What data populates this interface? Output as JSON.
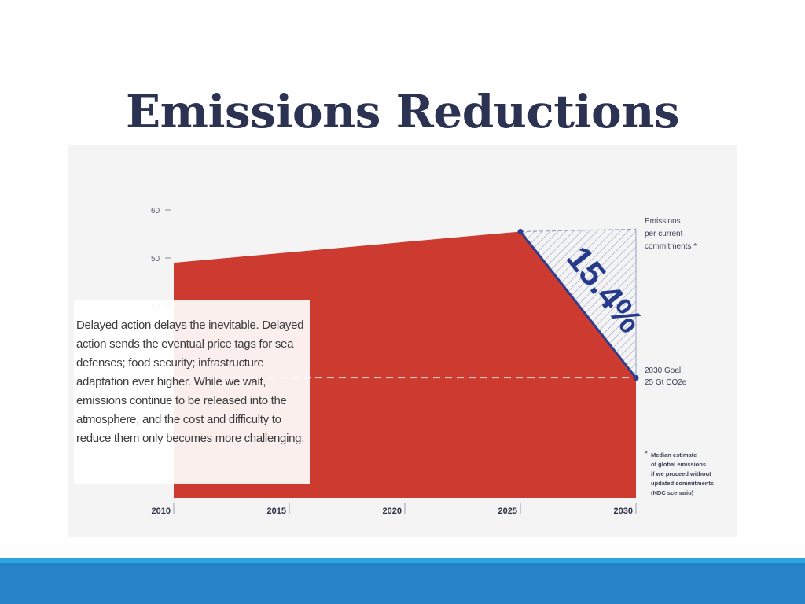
{
  "slide": {
    "title": "Emissions Reductions",
    "callout": "Delayed action delays the inevitable. Delayed action sends the eventual price tags for sea defenses; food security; infrastructure adaptation ever higher. While we wait, emissions continue to be released into the atmosphere, and the cost and difficulty to reduce them only becomes more challenging."
  },
  "chart_data": {
    "type": "area",
    "title": "",
    "xlabel": "",
    "ylabel": "",
    "x": [
      2010,
      2025,
      2030
    ],
    "values": [
      49,
      55.5,
      25
    ],
    "xticks": [
      "2010",
      "2015",
      "2020",
      "2025",
      "2030"
    ],
    "yticks": [
      "60",
      "50",
      "40"
    ],
    "xlim": [
      2010,
      2030
    ],
    "ylim": [
      0,
      60
    ],
    "projection": {
      "name": "Emissions per current commitments *",
      "x": [
        2025,
        2030
      ],
      "values": [
        55.5,
        56
      ]
    },
    "goal": {
      "value": 25,
      "label": [
        "2030 Goal:",
        "25 Gt CO2e"
      ]
    },
    "annotation": "15.4%",
    "series_label": [
      "Emissions",
      "per current",
      "commitments *"
    ],
    "footnote": [
      "Median estimate",
      "of global emissions",
      "if we proceed without",
      "updated commitments",
      "(NDC scenario)"
    ],
    "footnote_marker": "*",
    "colors": {
      "area": "#cc3a30",
      "line": "#2c3e8c",
      "goal_line": "#f0c2bd",
      "hatch": "#9aa0c4"
    }
  }
}
